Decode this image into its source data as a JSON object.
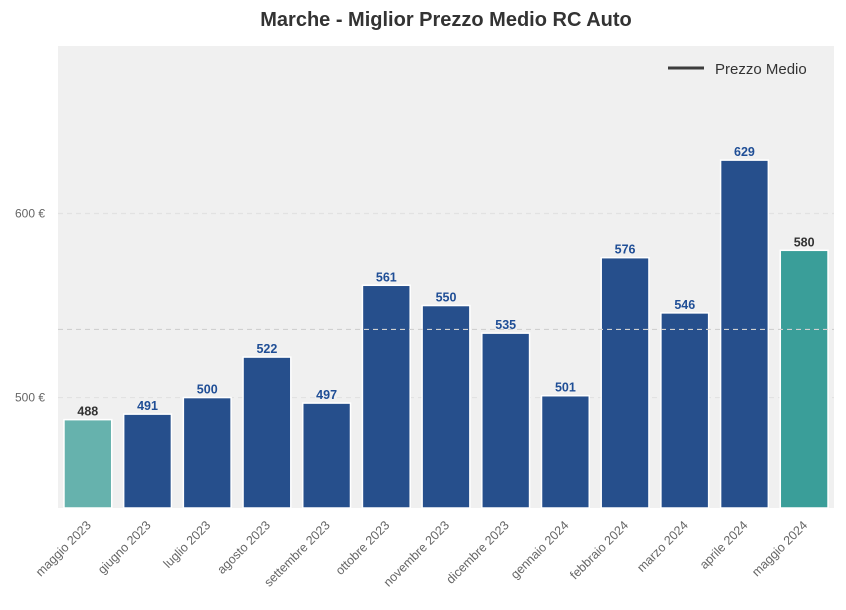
{
  "chart_data": {
    "type": "bar",
    "title": "Marche - Miglior Prezzo Medio RC Auto",
    "categories": [
      "maggio 2023",
      "giugno 2023",
      "luglio 2023",
      "agosto 2023",
      "settembre 2023",
      "ottobre 2023",
      "novembre 2023",
      "dicembre 2023",
      "gennaio 2024",
      "febbraio 2024",
      "marzo 2024",
      "aprile 2024",
      "maggio 2024"
    ],
    "values": [
      488,
      491,
      500,
      522,
      497,
      561,
      550,
      535,
      501,
      576,
      546,
      629,
      580
    ],
    "value_labels": [
      "488",
      "491",
      "500",
      "522",
      "497",
      "561",
      "550",
      "535",
      "501",
      "576",
      "546",
      "629",
      "580"
    ],
    "bar_colors": [
      "#66b2ad",
      "#264f8c",
      "#264f8c",
      "#264f8c",
      "#264f8c",
      "#264f8c",
      "#264f8c",
      "#264f8c",
      "#264f8c",
      "#264f8c",
      "#264f8c",
      "#264f8c",
      "#3a9e99"
    ],
    "label_colors": [
      "#333333",
      "#1f4e96",
      "#1f4e96",
      "#1f4e96",
      "#1f4e96",
      "#1f4e96",
      "#1f4e96",
      "#1f4e96",
      "#1f4e96",
      "#1f4e96",
      "#1f4e96",
      "#1f4e96",
      "#333333"
    ],
    "ylim": [
      440,
      691
    ],
    "yticks": [
      500,
      600
    ],
    "ytick_labels": [
      "500 €",
      "600 €"
    ],
    "reference_line": {
      "name": "Prezzo Medio",
      "value": 537
    },
    "legend_position": "top-right",
    "grid": true,
    "background_color": "#f0f0f0"
  }
}
